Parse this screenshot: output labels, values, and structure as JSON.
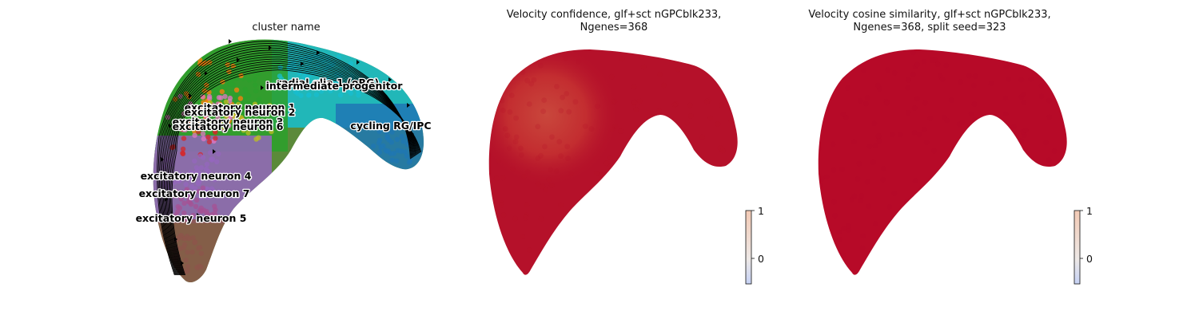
{
  "chart_data": [
    {
      "type": "scatter",
      "title": "cluster name",
      "overlay": "velocity streamlines",
      "clusters": [
        {
          "name": "radial glia 1 (oRG)",
          "color": "#17becf"
        },
        {
          "name": "intermediate progenitor",
          "color": "#2ca02c"
        },
        {
          "name": "cycling RG/IPC",
          "color": "#1f77b4"
        },
        {
          "name": "excitatory neuron 1",
          "color": "#e377c2"
        },
        {
          "name": "excitatory neuron 2",
          "color": "#ff7f0e"
        },
        {
          "name": "excitatory neuron 3",
          "color": "#bcbd22"
        },
        {
          "name": "excitatory neuron 6",
          "color": "#d62728"
        },
        {
          "name": "excitatory neuron 4",
          "color": "#9467bd"
        },
        {
          "name": "excitatory neuron 7",
          "color": "#a55194"
        },
        {
          "name": "excitatory neuron 5",
          "color": "#8c564b"
        }
      ]
    },
    {
      "type": "scatter",
      "title": "Velocity confidence, glf+sct nGPCblk233,\nNgenes=368",
      "colormap": "coolwarm",
      "colorbar": {
        "ticks": [
          "1",
          "0"
        ],
        "range": [
          -0.5,
          1
        ]
      },
      "dominant_color": "#b5112a"
    },
    {
      "type": "scatter",
      "title": "Velocity cosine similarity, glf+sct nGPCblk233,\nNgenes=368, split seed=323",
      "colormap": "coolwarm",
      "colorbar": {
        "ticks": [
          "1",
          "0"
        ],
        "range": [
          -0.5,
          1
        ]
      },
      "dominant_color": "#b70a28"
    }
  ]
}
